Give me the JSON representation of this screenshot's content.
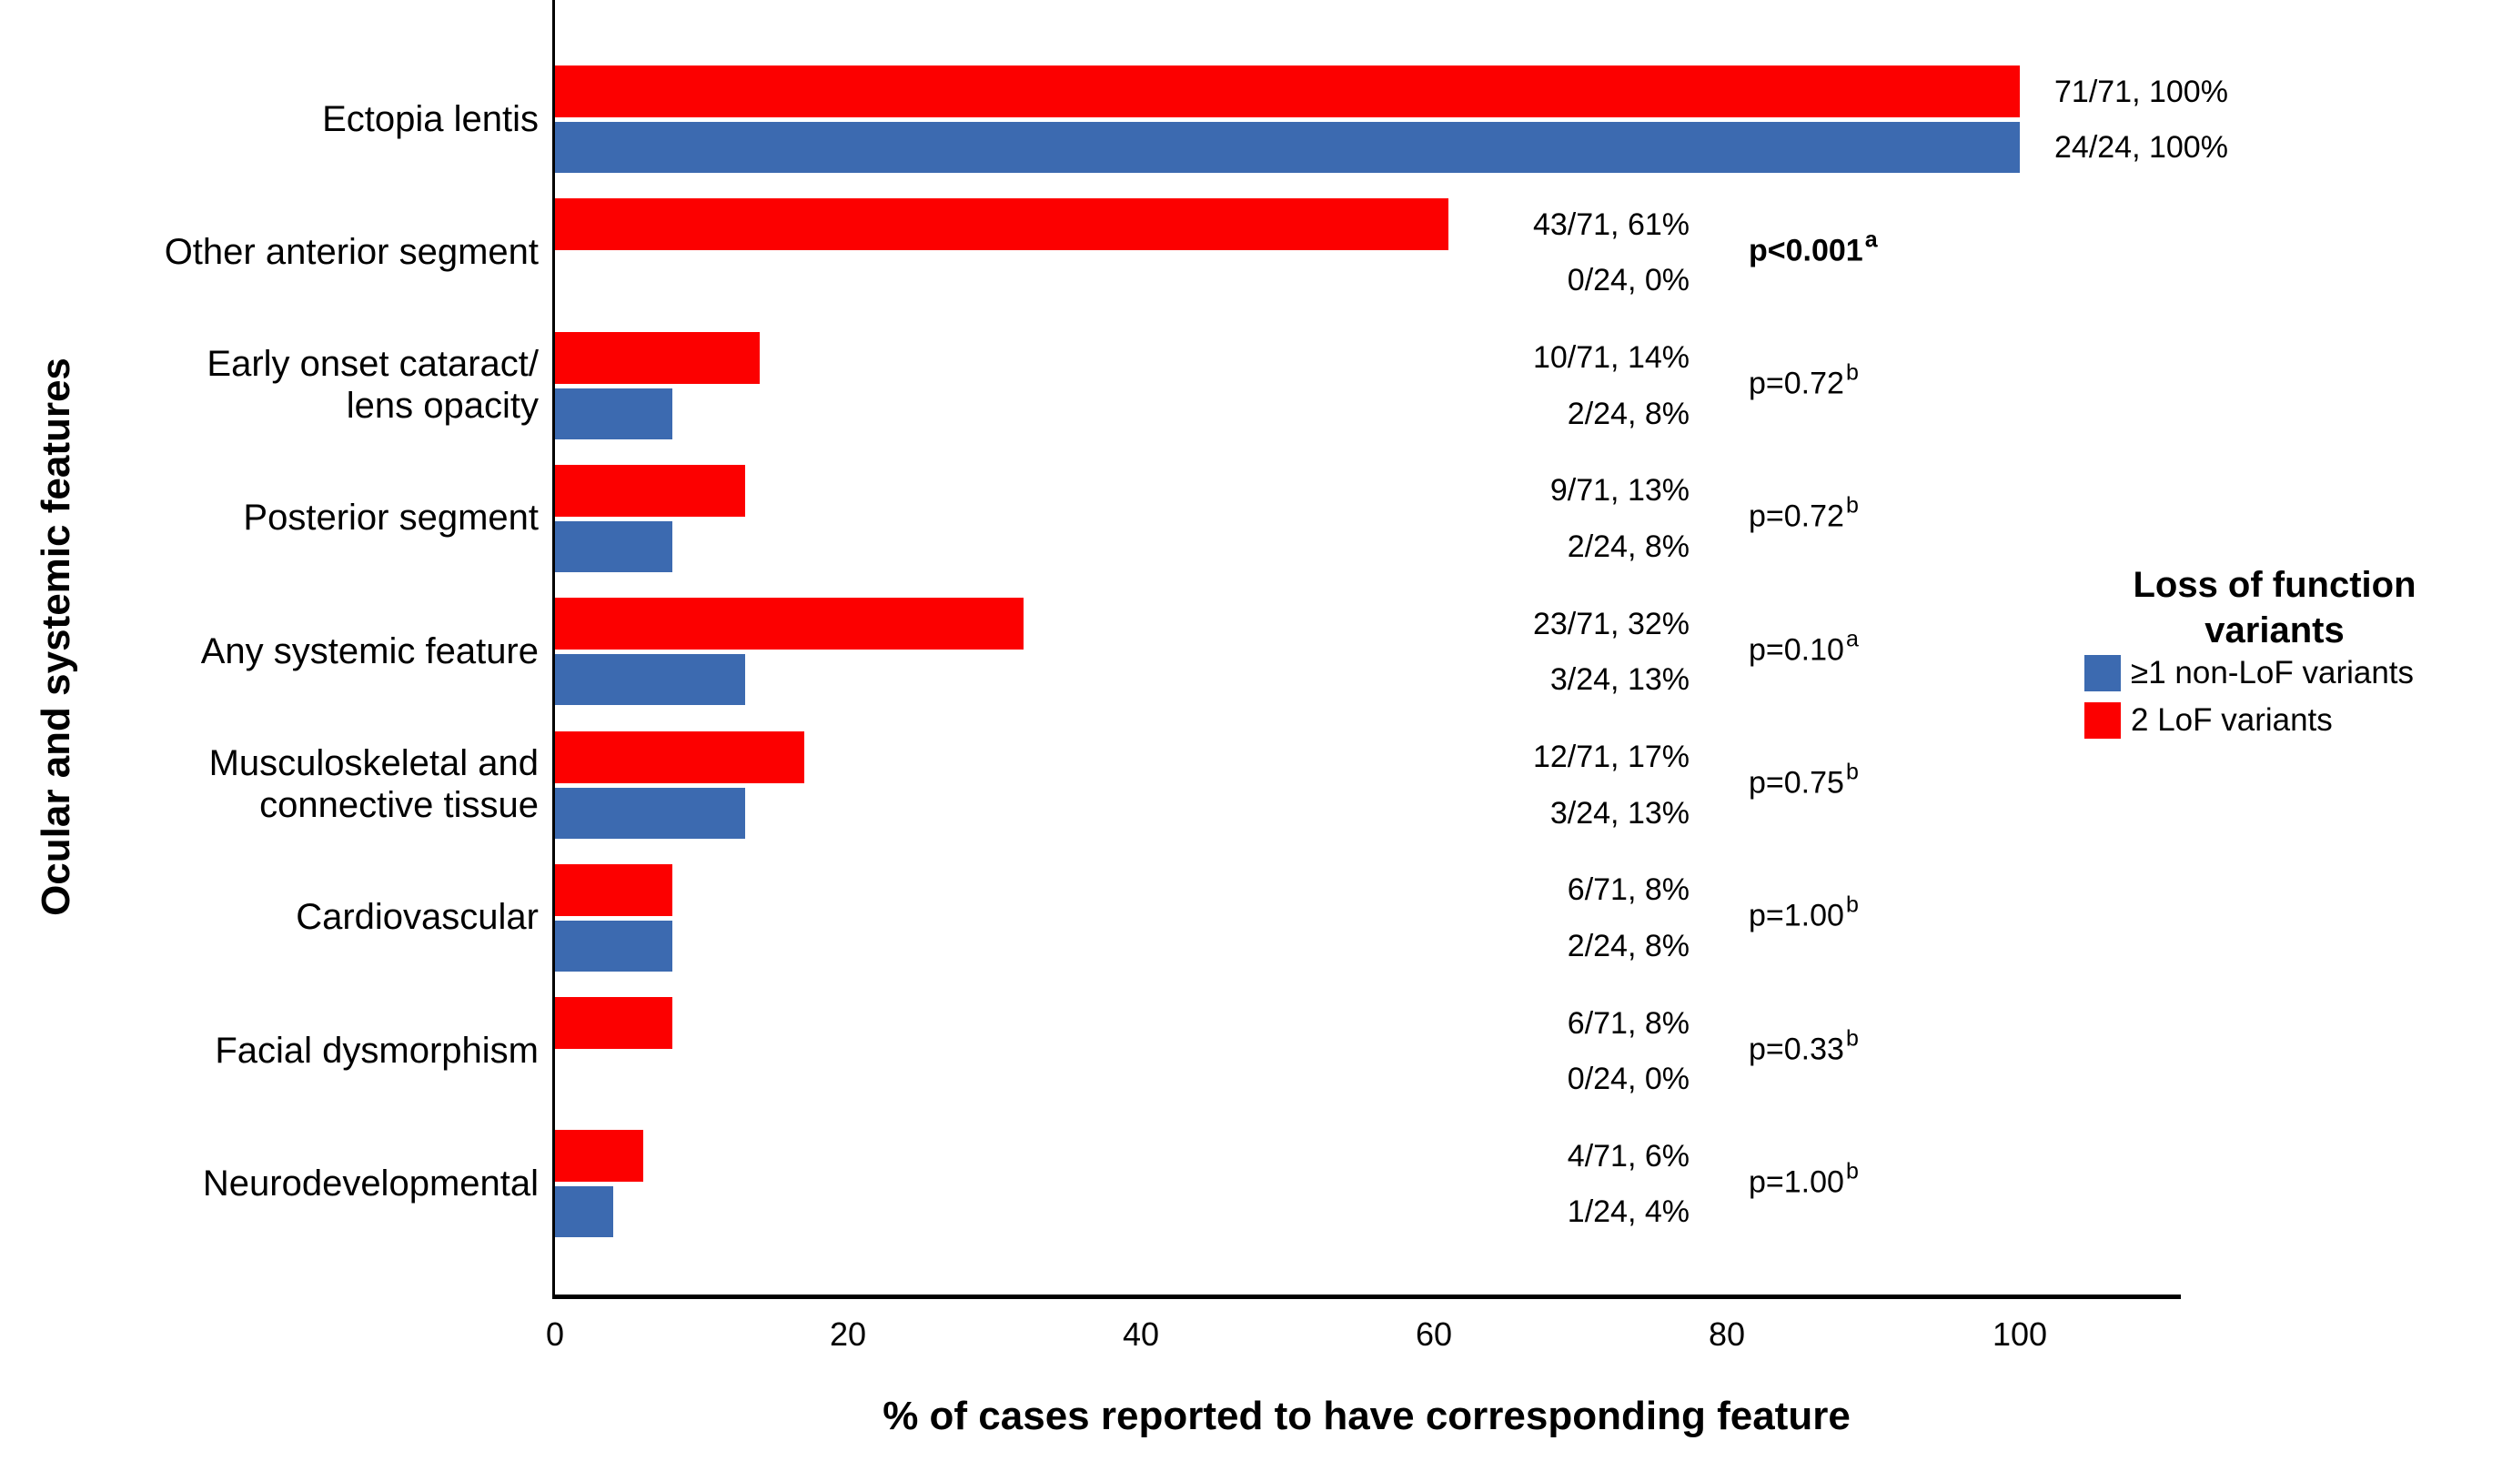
{
  "chart_data": {
    "type": "bar",
    "orientation": "horizontal",
    "xlabel": "% of cases reported to have corresponding feature",
    "ylabel": "Ocular and systemic features",
    "xlim": [
      0,
      111
    ],
    "xticks": [
      "0",
      "20",
      "40",
      "60",
      "80",
      "100"
    ],
    "xtick_values": [
      0,
      20,
      40,
      60,
      80,
      100
    ],
    "grid": false,
    "colors": {
      "lof_red": "#FC0000",
      "non_lof_blue": "#3C6AB0",
      "axis": "#000000"
    },
    "categories": [
      "Ectopia lentis",
      "Other anterior segment",
      "Early onset cataract/ lens opacity",
      "Posterior segment",
      "Any systemic feature",
      "Musculoskeletal and connective tissue",
      "Cardiovascular",
      "Facial dysmorphism",
      "Neurodevelopmental"
    ],
    "series": [
      {
        "name": "2 LoF variants",
        "color": "#FC0000",
        "values": [
          100,
          61,
          14,
          13,
          32,
          17,
          8,
          8,
          6
        ]
      },
      {
        "name": "≥1 non-LoF variants",
        "color": "#3C6AB0",
        "values": [
          100,
          0,
          8,
          8,
          13,
          13,
          8,
          0,
          4
        ]
      }
    ],
    "legend": {
      "title": "Loss of function\nvariants",
      "position": "right",
      "entries": [
        {
          "label": "≥1 non-LoF variants",
          "color": "#3C6AB0"
        },
        {
          "label": "2 LoF variants",
          "color": "#FC0000"
        }
      ]
    },
    "rows": [
      {
        "label": "Ectopia lentis",
        "lof": {
          "frac": "71/71, 100%",
          "pct": 100
        },
        "nonlof": {
          "frac": "24/24, 100%",
          "pct": 100
        },
        "p": null,
        "labels_at_end": true
      },
      {
        "label": "Other anterior segment",
        "lof": {
          "frac": "43/71, 61%",
          "pct": 61
        },
        "nonlof": {
          "frac": "0/24, 0%",
          "pct": 0
        },
        "p": {
          "text": "p<0.001",
          "sup": "a",
          "bold": true
        }
      },
      {
        "label": "Early onset cataract/\nlens opacity",
        "lof": {
          "frac": "10/71, 14%",
          "pct": 14
        },
        "nonlof": {
          "frac": "2/24, 8%",
          "pct": 8
        },
        "p": {
          "text": "p=0.72",
          "sup": "b",
          "bold": false
        }
      },
      {
        "label": "Posterior segment",
        "lof": {
          "frac": "9/71, 13%",
          "pct": 13
        },
        "nonlof": {
          "frac": "2/24, 8%",
          "pct": 8
        },
        "p": {
          "text": "p=0.72",
          "sup": "b",
          "bold": false
        }
      },
      {
        "label": "Any systemic feature",
        "lof": {
          "frac": "23/71, 32%",
          "pct": 32
        },
        "nonlof": {
          "frac": "3/24, 13%",
          "pct": 13
        },
        "p": {
          "text": "p=0.10",
          "sup": "a",
          "bold": false
        }
      },
      {
        "label": "Musculoskeletal and\nconnective tissue",
        "lof": {
          "frac": "12/71, 17%",
          "pct": 17
        },
        "nonlof": {
          "frac": "3/24, 13%",
          "pct": 13
        },
        "p": {
          "text": "p=0.75",
          "sup": "b",
          "bold": false
        }
      },
      {
        "label": "Cardiovascular",
        "lof": {
          "frac": "6/71, 8%",
          "pct": 8
        },
        "nonlof": {
          "frac": "2/24, 8%",
          "pct": 8
        },
        "p": {
          "text": "p=1.00",
          "sup": "b",
          "bold": false
        }
      },
      {
        "label": "Facial dysmorphism",
        "lof": {
          "frac": "6/71, 8%",
          "pct": 8
        },
        "nonlof": {
          "frac": "0/24, 0%",
          "pct": 0
        },
        "p": {
          "text": "p=0.33",
          "sup": "b",
          "bold": false
        }
      },
      {
        "label": "Neurodevelopmental",
        "lof": {
          "frac": "4/71, 6%",
          "pct": 6
        },
        "nonlof": {
          "frac": "1/24, 4%",
          "pct": 4
        },
        "p": {
          "text": "p=1.00",
          "sup": "b",
          "bold": false
        }
      }
    ]
  }
}
